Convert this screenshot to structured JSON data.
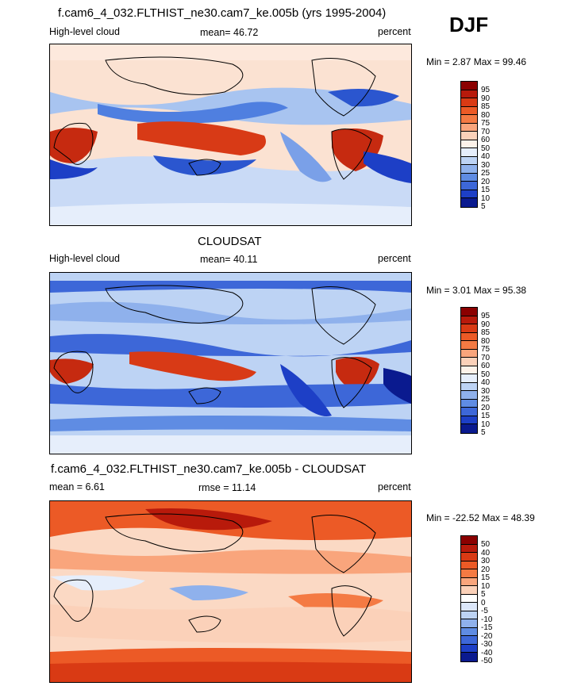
{
  "season": "DJF",
  "panels": [
    {
      "id": "model",
      "title": "f.cam6_4_032.FLTHIST_ne30.cam7_ke.005b (yrs 1995-2004)",
      "left_label": "High-level cloud",
      "center_label": "mean=  46.72",
      "right_label": "percent",
      "minmax": "Min =   2.87 Max =  99.46",
      "colorbar_labels": [
        "95",
        "90",
        "85",
        "80",
        "75",
        "70",
        "60",
        "50",
        "40",
        "30",
        "25",
        "20",
        "15",
        "10",
        "5"
      ]
    },
    {
      "id": "obs",
      "title": "CLOUDSAT",
      "left_label": "High-level cloud",
      "center_label": "mean=  40.11",
      "right_label": "percent",
      "minmax": "Min =   3.01 Max =  95.38",
      "colorbar_labels": [
        "95",
        "90",
        "85",
        "80",
        "75",
        "70",
        "60",
        "50",
        "40",
        "30",
        "25",
        "20",
        "15",
        "10",
        "5"
      ]
    },
    {
      "id": "diff",
      "title": "f.cam6_4_032.FLTHIST_ne30.cam7_ke.005b - CLOUDSAT",
      "left_label": "mean =   6.61",
      "center_label": "rmse =  11.14",
      "right_label": "percent",
      "minmax": "Min = -22.52 Max =  48.39",
      "colorbar_labels": [
        "50",
        "40",
        "30",
        "20",
        "15",
        "10",
        "5",
        "0",
        "-5",
        "-10",
        "-15",
        "-20",
        "-30",
        "-40",
        "-50"
      ]
    }
  ],
  "colors": {
    "abs_scale": [
      "#8b0000",
      "#b81a0b",
      "#d93a14",
      "#ec5a26",
      "#f47a43",
      "#f9a57c",
      "#fbd1b9",
      "#fdf2e9",
      "#e6eefb",
      "#bdd3f4",
      "#8fb1ec",
      "#5f8ce3",
      "#3d67d8",
      "#1d3fc6",
      "#0a1a8f"
    ],
    "diff_scale": [
      "#8b0000",
      "#b81a0b",
      "#d93a14",
      "#ec5a26",
      "#f47a43",
      "#f9a57c",
      "#fbd1b9",
      "#ffffff",
      "#dce7fa",
      "#bdd3f4",
      "#8fb1ec",
      "#5f8ce3",
      "#3d67d8",
      "#1d3fc6",
      "#0a1a8f"
    ]
  }
}
